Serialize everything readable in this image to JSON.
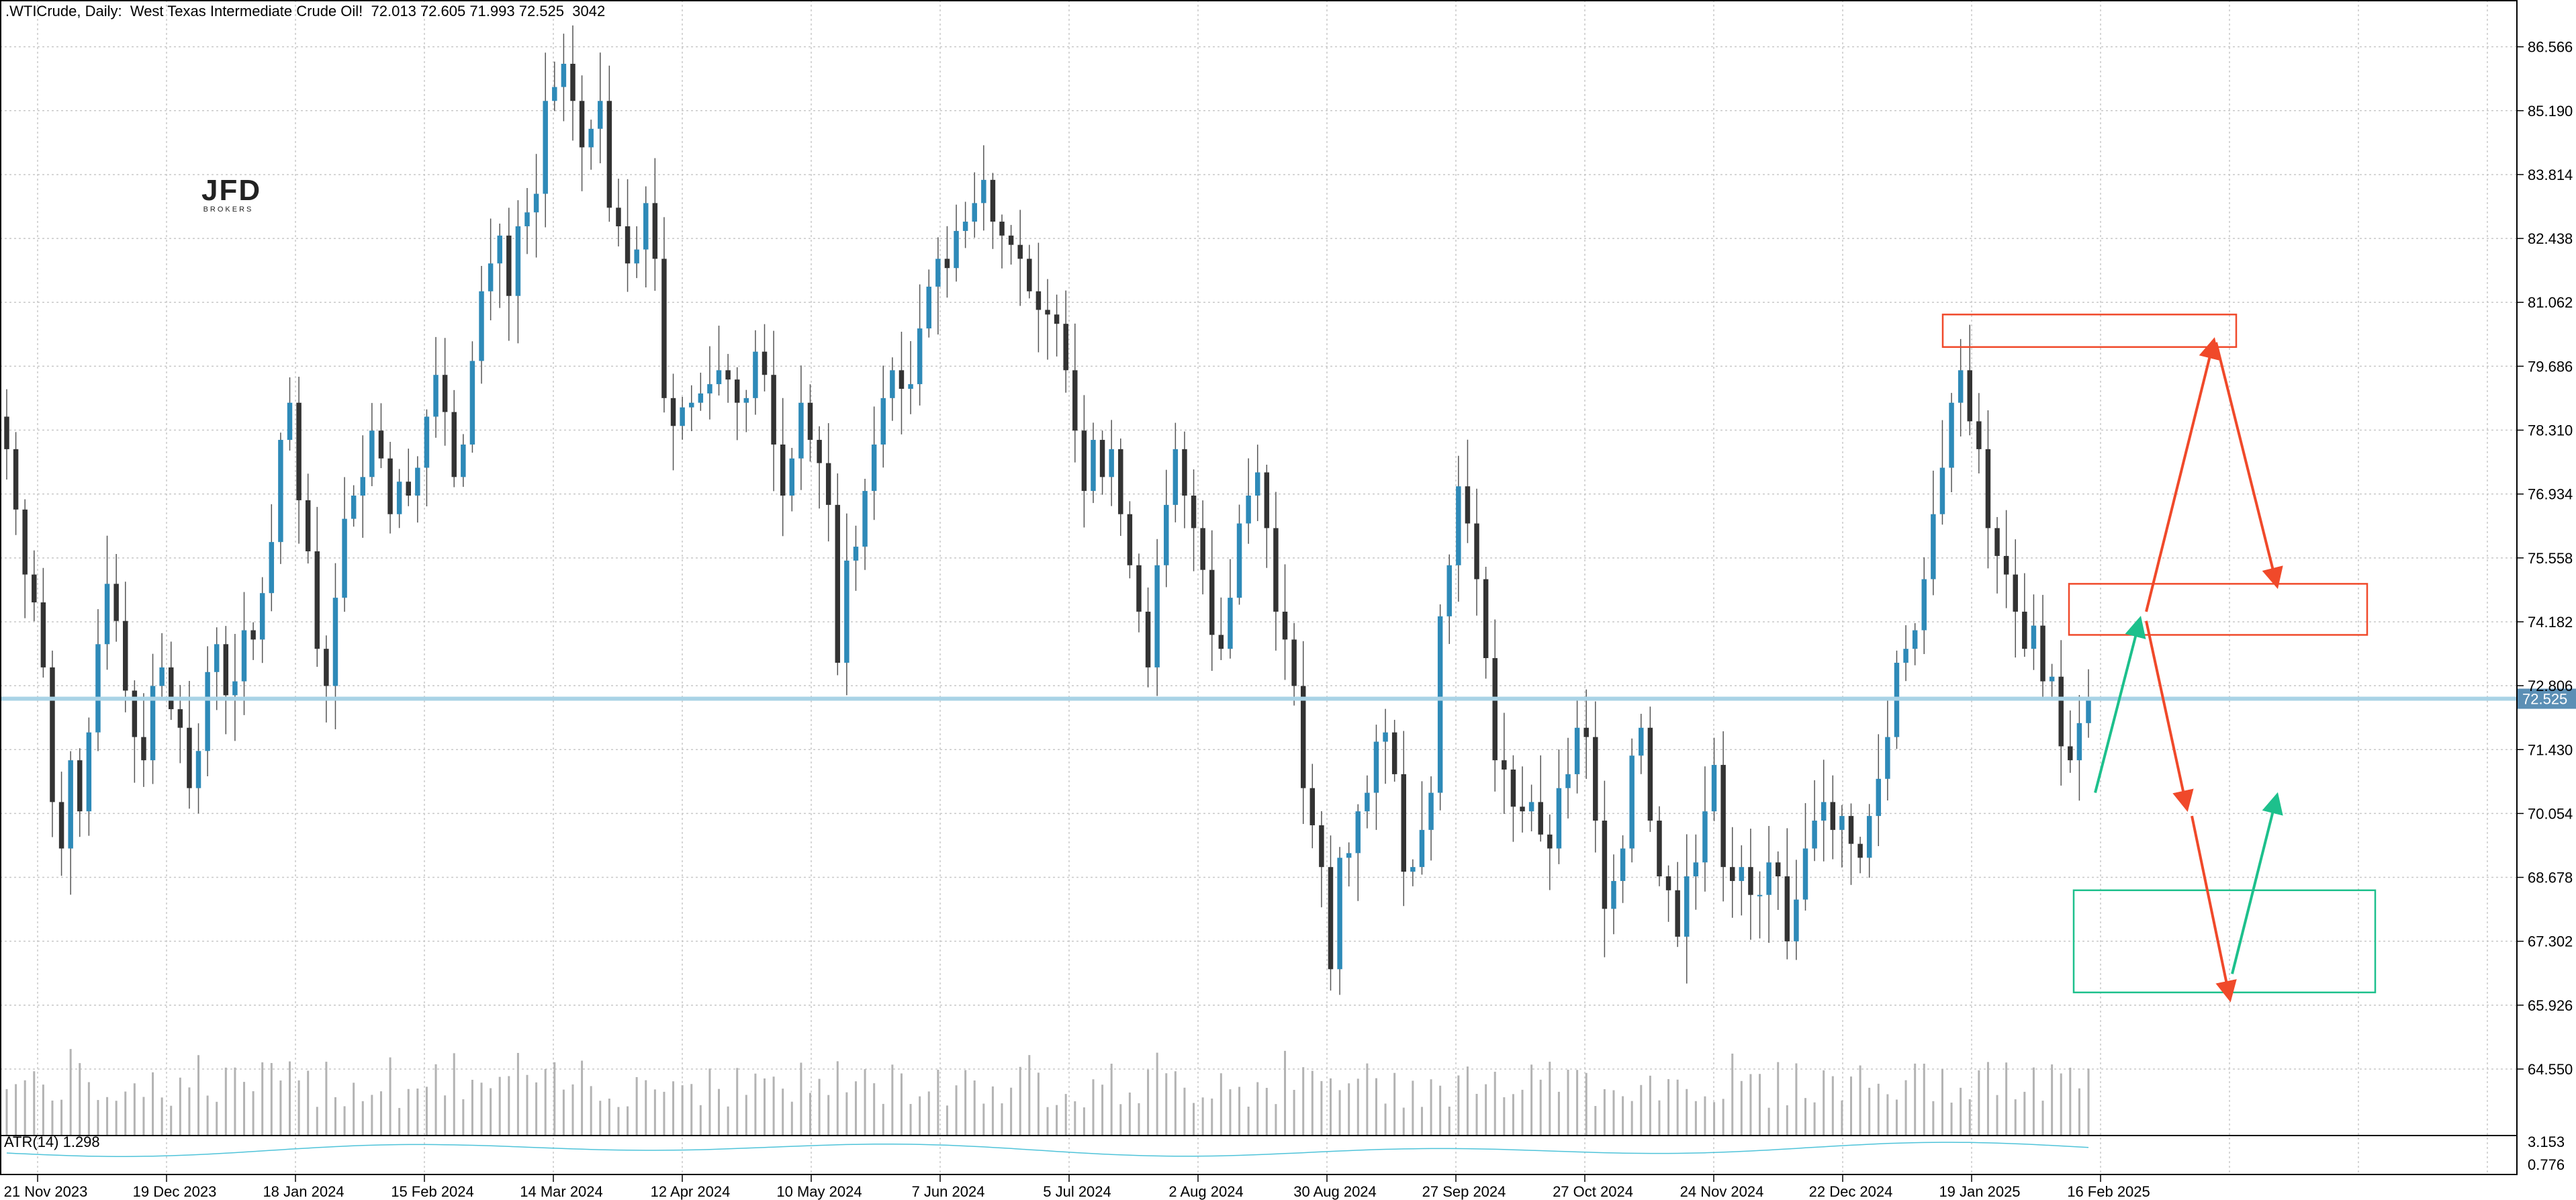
{
  "header": {
    "symbol": ".WTICrude, Daily:",
    "instrument": "West Texas Intermediate Crude Oil!",
    "ohlc": "72.013 72.605 71.993 72.525",
    "volume": "3042"
  },
  "logo": {
    "mark": "JFD",
    "sub": "BROKERS"
  },
  "atr": {
    "label": "ATR(14) 1.298",
    "scale": [
      "3.153",
      "0.776"
    ]
  },
  "chart_data": {
    "type": "candlestick",
    "title": ".WTICrude, Daily",
    "ylim": [
      64.0,
      87.4
    ],
    "y_ticks": [
      "86.566",
      "85.190",
      "83.814",
      "82.438",
      "81.062",
      "79.686",
      "78.310",
      "76.934",
      "75.558",
      "74.182",
      "72.806",
      "71.430",
      "70.054",
      "68.678",
      "67.302",
      "65.926",
      "64.550"
    ],
    "x_ticks": [
      "21 Nov 2023",
      "19 Dec 2023",
      "18 Jan 2024",
      "15 Feb 2024",
      "14 Mar 2024",
      "12 Apr 2024",
      "10 May 2024",
      "7 Jun 2024",
      "5 Jul 2024",
      "2 Aug 2024",
      "30 Aug 2024",
      "27 Sep 2024",
      "27 Oct 2024",
      "24 Nov 2024",
      "22 Dec 2024",
      "19 Jan 2025",
      "16 Feb 2025"
    ],
    "current_price": "72.525",
    "close_series": [
      77.9,
      76.6,
      75.2,
      74.6,
      73.2,
      70.3,
      69.3,
      71.2,
      70.1,
      71.8,
      73.7,
      75.0,
      74.2,
      72.7,
      71.7,
      71.2,
      72.8,
      73.2,
      72.3,
      71.9,
      70.6,
      71.4,
      73.1,
      73.7,
      72.6,
      72.9,
      74.0,
      73.8,
      74.8,
      75.9,
      78.1,
      78.9,
      76.8,
      75.7,
      73.6,
      72.8,
      74.7,
      76.4,
      76.9,
      77.3,
      78.3,
      77.7,
      76.5,
      77.2,
      76.9,
      77.5,
      78.6,
      79.5,
      78.7,
      77.3,
      78.0,
      79.8,
      81.3,
      81.9,
      82.5,
      81.2,
      82.7,
      83.0,
      83.4,
      85.4,
      85.7,
      86.2,
      85.4,
      84.4,
      84.8,
      85.4,
      83.1,
      82.7,
      81.9,
      82.2,
      83.2,
      82.0,
      79.0,
      78.4,
      78.8,
      78.9,
      79.1,
      79.3,
      79.6,
      79.4,
      78.9,
      79.0,
      80.0,
      79.5,
      78.0,
      76.9,
      77.7,
      78.9,
      78.1,
      77.6,
      76.7,
      73.3,
      75.5,
      75.8,
      77.0,
      78.0,
      79.0,
      79.6,
      79.2,
      79.3,
      80.5,
      81.4,
      82.0,
      81.8,
      82.6,
      82.8,
      83.2,
      83.7,
      82.8,
      82.5,
      82.3,
      82.0,
      81.3,
      80.9,
      80.8,
      80.6,
      79.6,
      78.3,
      77.0,
      78.1,
      77.3,
      77.9,
      76.5,
      75.4,
      74.4,
      73.2,
      75.4,
      76.7,
      77.9,
      76.9,
      76.2,
      75.3,
      73.9,
      73.6,
      74.7,
      76.3,
      76.9,
      77.4,
      76.2,
      74.4,
      73.8,
      72.8,
      70.6,
      69.8,
      68.9,
      66.7,
      69.1,
      69.2,
      70.1,
      70.5,
      71.6,
      71.8,
      70.9,
      68.8,
      68.9,
      69.7,
      70.5,
      74.3,
      75.4,
      77.1,
      76.3,
      75.1,
      73.4,
      71.2,
      71.0,
      70.2,
      70.1,
      70.3,
      69.6,
      69.3,
      70.6,
      70.9,
      71.9,
      71.7,
      69.9,
      68.0,
      68.6,
      69.3,
      71.3,
      71.9,
      69.9,
      68.7,
      68.4,
      67.4,
      68.7,
      69.0,
      70.1,
      71.1,
      68.9,
      68.6,
      68.9,
      68.3,
      68.3,
      69.0,
      68.7,
      67.3,
      68.2,
      69.3,
      69.9,
      70.3,
      69.7,
      70.0,
      69.4,
      69.1,
      70.0,
      70.8,
      71.7,
      73.3,
      73.6,
      74.0,
      75.1,
      76.5,
      77.5,
      78.9,
      79.6,
      78.5,
      77.9,
      76.2,
      75.6,
      75.2,
      74.4,
      73.6,
      74.1,
      72.9,
      73.0,
      71.5,
      71.2,
      72.0,
      72.5
    ]
  },
  "annotations": {
    "resistance_zones": [
      "upper-resistance",
      "mid-resistance"
    ],
    "support_zones": [
      "lower-support"
    ],
    "colors": {
      "bull": "#2e8ab8",
      "bear": "#333333",
      "resist": "#f0492a",
      "support": "#1dc08c",
      "price_line": "#a9d3e6",
      "price_label_bg": "#5b8fb5"
    }
  }
}
